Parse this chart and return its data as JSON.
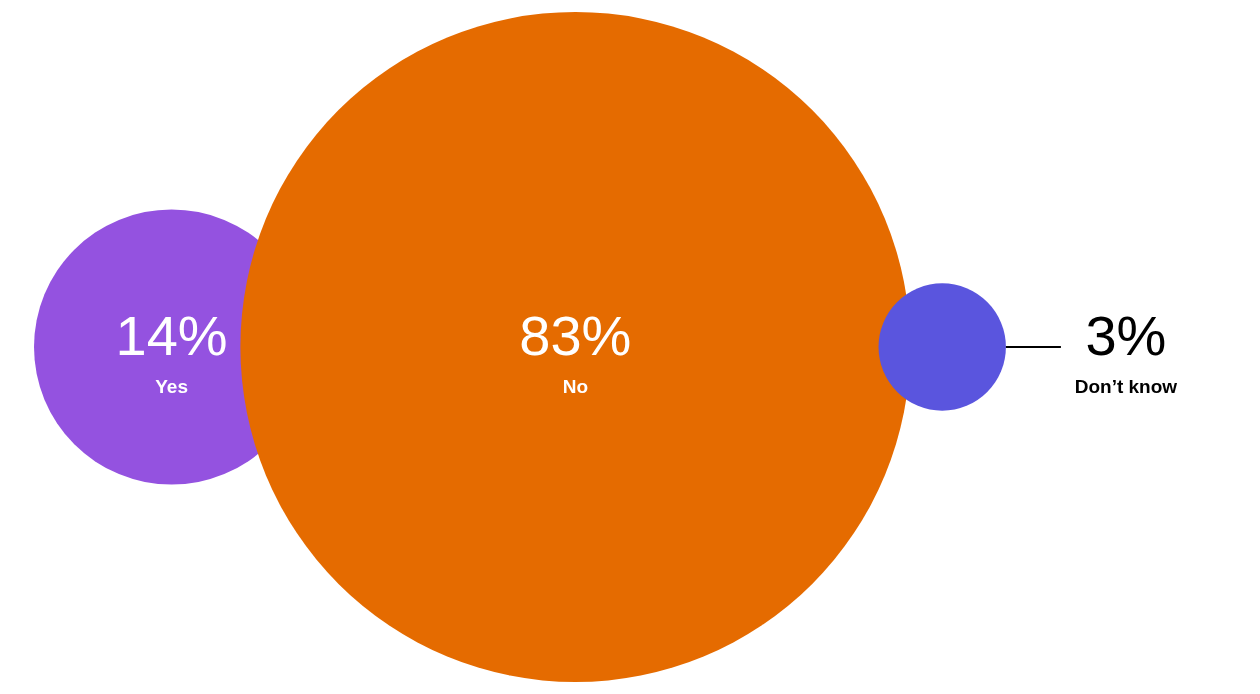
{
  "chart_data": {
    "type": "other",
    "categories": [
      "Yes",
      "No",
      "Don’t know"
    ],
    "values": [
      14,
      83,
      3
    ],
    "value_labels": [
      "14%",
      "83%",
      "3%"
    ],
    "colors": [
      "#9452e0",
      "#e56b00",
      "#5a55de"
    ]
  }
}
